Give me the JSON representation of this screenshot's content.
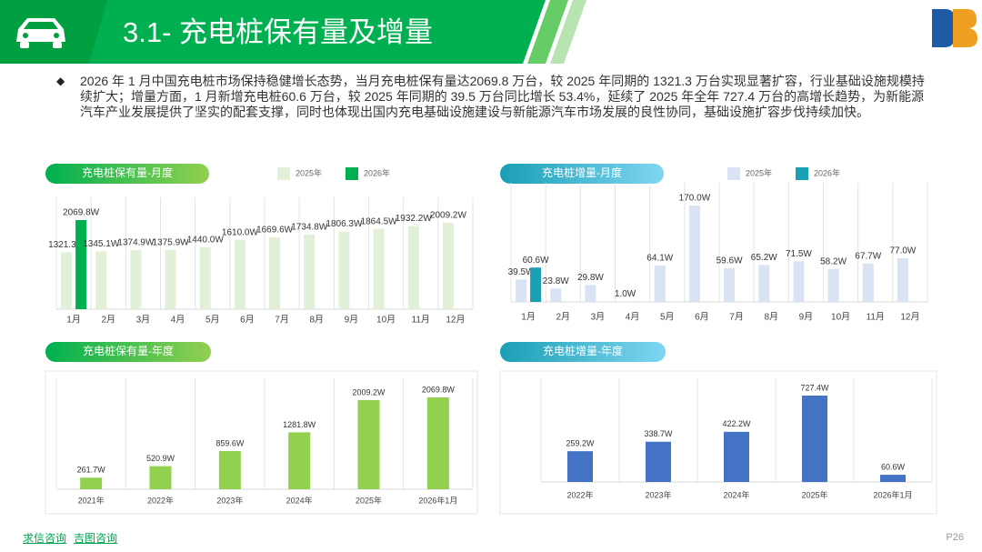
{
  "header": {
    "title": "3.1- 充电桩保有量及增量"
  },
  "summary": "2026 年 1 月中国充电桩市场保持稳健增长态势，当月充电桩保有量达2069.8 万台，较 2025 年同期的 1321.3 万台实现显著扩容，行业基础设施规模持续扩大；增量方面，1 月新增充电桩60.6 万台，较 2025 年同期的 39.5 万台同比增长 53.4%，延续了 2025 年全年 727.4 万台的高增长趋势，为新能源汽车产业发展提供了坚实的配套支撑，同时也体现出国内充电基础设施建设与新能源汽车市场发展的良性协同，基础设施扩容步伐持续加快。",
  "chart_data": [
    {
      "type": "bar",
      "title": "充电桩保有量-月度",
      "categories": [
        "1月",
        "2月",
        "3月",
        "4月",
        "5月",
        "6月",
        "7月",
        "8月",
        "9月",
        "10月",
        "11月",
        "12月"
      ],
      "series": [
        {
          "name": "2025年",
          "color": "#e2efd9",
          "values": [
            1321.3,
            1345.1,
            1374.9,
            1375.9,
            1440.0,
            1610.0,
            1669.6,
            1734.8,
            1806.3,
            1864.5,
            1932.2,
            2009.2
          ],
          "value_labels": [
            "1321.3W",
            "1345.1W",
            "1374.9W",
            "1375.9W",
            "1440.0W",
            "1610.0W",
            "1669.6W",
            "1734.8W",
            "1806.3W",
            "1864.5W",
            "1932.2W",
            "2009.2W"
          ]
        },
        {
          "name": "2026年",
          "color": "#00b050",
          "values": [
            2069.8,
            null,
            null,
            null,
            null,
            null,
            null,
            null,
            null,
            null,
            null,
            null
          ],
          "value_labels": [
            "2069.8W",
            null,
            null,
            null,
            null,
            null,
            null,
            null,
            null,
            null,
            null,
            null
          ]
        }
      ]
    },
    {
      "type": "bar",
      "title": "充电桩增量-月度",
      "categories": [
        "1月",
        "2月",
        "3月",
        "4月",
        "5月",
        "6月",
        "7月",
        "8月",
        "9月",
        "10月",
        "11月",
        "12月"
      ],
      "series": [
        {
          "name": "2025年",
          "color": "#dae3f3",
          "values": [
            39.5,
            23.8,
            29.8,
            1.0,
            64.1,
            170.0,
            59.6,
            65.2,
            71.5,
            58.2,
            67.7,
            77.0
          ],
          "value_labels": [
            "39.5W",
            "23.8W",
            "29.8W",
            "1.0W",
            "64.1W",
            "170.0W",
            "59.6W",
            "65.2W",
            "71.5W",
            "58.2W",
            "67.7W",
            "77.0W"
          ]
        },
        {
          "name": "2026年",
          "color": "#1a9fb5",
          "values": [
            60.6,
            null,
            null,
            null,
            null,
            null,
            null,
            null,
            null,
            null,
            null,
            null
          ],
          "value_labels": [
            "60.6W",
            null,
            null,
            null,
            null,
            null,
            null,
            null,
            null,
            null,
            null,
            null
          ]
        }
      ]
    },
    {
      "type": "bar",
      "title": "充电桩保有量-年度",
      "categories": [
        "2021年",
        "2022年",
        "2023年",
        "2024年",
        "2025年",
        "2026年1月"
      ],
      "values": [
        261.7,
        520.9,
        859.6,
        1281.8,
        2009.2,
        2069.8
      ],
      "value_labels": [
        "261.7W",
        "520.9W",
        "859.6W",
        "1281.8W",
        "2009.2W",
        "2069.8W"
      ],
      "color": "#92d050"
    },
    {
      "type": "bar",
      "title": "充电桩增量-年度",
      "categories": [
        "2022年",
        "2023年",
        "2024年",
        "2025年",
        "2026年1月"
      ],
      "values": [
        259.2,
        338.7,
        422.2,
        727.4,
        60.6
      ],
      "value_labels": [
        "259.2W",
        "338.7W",
        "422.2W",
        "727.4W",
        "60.6W"
      ],
      "color": "#4472c4"
    }
  ],
  "footer": {
    "links": [
      "求信咨询",
      "吉图咨询"
    ],
    "page": "P26"
  }
}
